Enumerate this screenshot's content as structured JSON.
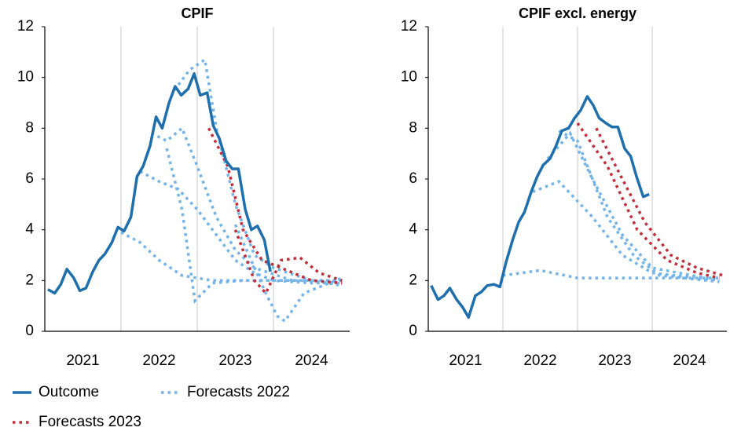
{
  "chart_data": [
    {
      "type": "line",
      "title": "CPIF",
      "xlim": [
        2021,
        2025
      ],
      "ylim": [
        0,
        12
      ],
      "yticks": [
        0,
        2,
        4,
        6,
        8,
        10,
        12
      ],
      "xticks": [
        {
          "value": 2021.5,
          "label": "2021"
        },
        {
          "value": 2022.5,
          "label": "2022"
        },
        {
          "value": 2023.5,
          "label": "2023"
        },
        {
          "value": 2024.5,
          "label": "2024"
        }
      ],
      "xgrid": [
        2022,
        2023,
        2024
      ],
      "series": [
        {
          "name": "Outcome",
          "color": "#1f6fad",
          "style": "solid",
          "x": [
            2021.04,
            2021.13,
            2021.21,
            2021.29,
            2021.38,
            2021.46,
            2021.54,
            2021.63,
            2021.71,
            2021.79,
            2021.88,
            2021.96,
            2022.04,
            2022.13,
            2022.21,
            2022.29,
            2022.38,
            2022.46,
            2022.54,
            2022.63,
            2022.71,
            2022.79,
            2022.88,
            2022.96,
            2023.04,
            2023.13,
            2023.21,
            2023.29,
            2023.38,
            2023.46,
            2023.54,
            2023.63,
            2023.71,
            2023.79,
            2023.88,
            2023.96
          ],
          "values": [
            1.65,
            1.5,
            1.85,
            2.45,
            2.1,
            1.6,
            1.7,
            2.35,
            2.8,
            3.05,
            3.5,
            4.1,
            3.95,
            4.5,
            6.1,
            6.5,
            7.3,
            8.45,
            8.0,
            9.0,
            9.65,
            9.3,
            9.55,
            10.15,
            9.3,
            9.4,
            8.1,
            7.6,
            6.7,
            6.4,
            6.4,
            4.8,
            4.0,
            4.15,
            3.6,
            2.35
          ]
        },
        {
          "name": "Forecasts 2022",
          "color": "#74b4e8",
          "style": "dotted",
          "x": [
            2022.0,
            2022.25,
            2022.5,
            2022.8,
            2023.2,
            2023.6,
            2024.0,
            2024.9
          ],
          "values": [
            3.9,
            3.5,
            2.8,
            2.2,
            2.0,
            2.0,
            2.0,
            2.0
          ]
        },
        {
          "name": "Forecasts 2022",
          "color": "#74b4e8",
          "style": "dotted",
          "x": [
            2022.25,
            2022.5,
            2022.75,
            2023.0,
            2023.25,
            2023.5,
            2023.75,
            2024.0,
            2024.5,
            2024.9
          ],
          "values": [
            6.3,
            5.9,
            5.6,
            4.8,
            3.8,
            2.8,
            2.3,
            2.0,
            1.9,
            1.9
          ]
        },
        {
          "name": "Forecasts 2022",
          "color": "#74b4e8",
          "style": "dotted",
          "x": [
            2022.4,
            2022.6,
            2022.8,
            2023.0,
            2023.25,
            2023.5,
            2023.75,
            2024.25,
            2024.9
          ],
          "values": [
            7.8,
            7.5,
            8.0,
            6.5,
            4.5,
            3.2,
            2.5,
            2.0,
            1.9
          ]
        },
        {
          "name": "Forecasts 2022",
          "color": "#74b4e8",
          "style": "dotted",
          "x": [
            2022.7,
            2022.9,
            2023.1,
            2023.25,
            2023.5,
            2023.75,
            2024.0,
            2024.5,
            2024.9
          ],
          "values": [
            9.5,
            10.3,
            10.7,
            8.0,
            5.0,
            3.0,
            2.5,
            2.0,
            1.8
          ]
        },
        {
          "name": "Forecasts 2022",
          "color": "#74b4e8",
          "style": "dotted",
          "x": [
            2022.6,
            2022.8,
            2022.97,
            2023.2,
            2023.6,
            2024.0,
            2024.9
          ],
          "values": [
            7.2,
            4.8,
            1.2,
            1.9,
            2.0,
            2.0,
            2.0
          ]
        },
        {
          "name": "Forecasts 2022",
          "color": "#74b4e8",
          "style": "dotted",
          "x": [
            2023.5,
            2023.9,
            2024.05,
            2024.15,
            2024.4,
            2024.9
          ],
          "values": [
            4.2,
            1.5,
            0.6,
            0.4,
            1.5,
            2.1
          ]
        },
        {
          "name": "Forecasts 2023",
          "color": "#c0303b",
          "style": "dotted",
          "x": [
            2023.15,
            2023.4,
            2023.6,
            2023.85,
            2024.1,
            2024.5,
            2024.9
          ],
          "values": [
            8.0,
            6.5,
            4.0,
            2.8,
            2.5,
            2.0,
            1.9
          ]
        },
        {
          "name": "Forecasts 2023",
          "color": "#c0303b",
          "style": "dotted",
          "x": [
            2023.5,
            2023.75,
            2023.9,
            2024.1,
            2024.35,
            2024.6,
            2024.9
          ],
          "values": [
            4.0,
            2.0,
            1.5,
            2.8,
            2.9,
            2.3,
            2.0
          ]
        }
      ]
    },
    {
      "type": "line",
      "title": "CPIF excl. energy",
      "xlim": [
        2021,
        2025
      ],
      "ylim": [
        0,
        12
      ],
      "yticks": [
        0,
        2,
        4,
        6,
        8,
        10,
        12
      ],
      "xticks": [
        {
          "value": 2021.5,
          "label": "2021"
        },
        {
          "value": 2022.5,
          "label": "2022"
        },
        {
          "value": 2023.5,
          "label": "2023"
        },
        {
          "value": 2024.5,
          "label": "2024"
        }
      ],
      "xgrid": [
        2022,
        2023,
        2024
      ],
      "series": [
        {
          "name": "Outcome",
          "color": "#1f6fad",
          "style": "solid",
          "x": [
            2021.04,
            2021.13,
            2021.21,
            2021.29,
            2021.38,
            2021.46,
            2021.54,
            2021.63,
            2021.71,
            2021.79,
            2021.88,
            2021.96,
            2022.04,
            2022.13,
            2022.21,
            2022.29,
            2022.38,
            2022.46,
            2022.54,
            2022.63,
            2022.71,
            2022.79,
            2022.88,
            2022.96,
            2023.04,
            2023.13,
            2023.21,
            2023.29,
            2023.38,
            2023.46,
            2023.54,
            2023.63,
            2023.71,
            2023.79,
            2023.88,
            2023.96
          ],
          "values": [
            1.8,
            1.25,
            1.4,
            1.7,
            1.25,
            0.95,
            0.55,
            1.4,
            1.55,
            1.8,
            1.85,
            1.75,
            2.7,
            3.6,
            4.3,
            4.7,
            5.5,
            6.1,
            6.55,
            6.8,
            7.3,
            7.9,
            8.0,
            8.4,
            8.7,
            9.25,
            8.9,
            8.4,
            8.2,
            8.05,
            8.05,
            7.2,
            6.9,
            6.1,
            5.3,
            5.4
          ]
        },
        {
          "name": "Forecasts 2022",
          "color": "#74b4e8",
          "style": "dotted",
          "x": [
            2022.0,
            2022.5,
            2023.0,
            2024.0,
            2024.9
          ],
          "values": [
            2.2,
            2.4,
            2.1,
            2.1,
            2.1
          ]
        },
        {
          "name": "Forecasts 2022",
          "color": "#74b4e8",
          "style": "dotted",
          "x": [
            2022.4,
            2022.75,
            2023.2,
            2023.6,
            2024.0,
            2024.9
          ],
          "values": [
            5.5,
            5.9,
            4.5,
            3.0,
            2.3,
            2.0
          ]
        },
        {
          "name": "Forecasts 2022",
          "color": "#74b4e8",
          "style": "dotted",
          "x": [
            2022.6,
            2022.9,
            2023.2,
            2023.6,
            2024.0,
            2024.9
          ],
          "values": [
            6.8,
            7.8,
            6.0,
            3.8,
            2.5,
            2.0
          ]
        },
        {
          "name": "Forecasts 2022",
          "color": "#74b4e8",
          "style": "dotted",
          "x": [
            2022.75,
            2023.0,
            2023.4,
            2023.75,
            2024.1,
            2024.9
          ],
          "values": [
            7.9,
            7.5,
            4.5,
            3.0,
            2.2,
            1.95
          ]
        },
        {
          "name": "Forecasts 2023",
          "color": "#c0303b",
          "style": "dotted",
          "x": [
            2023.0,
            2023.4,
            2023.8,
            2024.2,
            2024.6,
            2024.9
          ],
          "values": [
            8.2,
            6.5,
            4.0,
            2.8,
            2.3,
            2.1
          ]
        },
        {
          "name": "Forecasts 2023",
          "color": "#c0303b",
          "style": "dotted",
          "x": [
            2023.25,
            2023.6,
            2023.9,
            2024.25,
            2024.6,
            2024.95
          ],
          "values": [
            8.0,
            6.0,
            4.3,
            3.0,
            2.5,
            2.2
          ]
        }
      ]
    }
  ]
}
